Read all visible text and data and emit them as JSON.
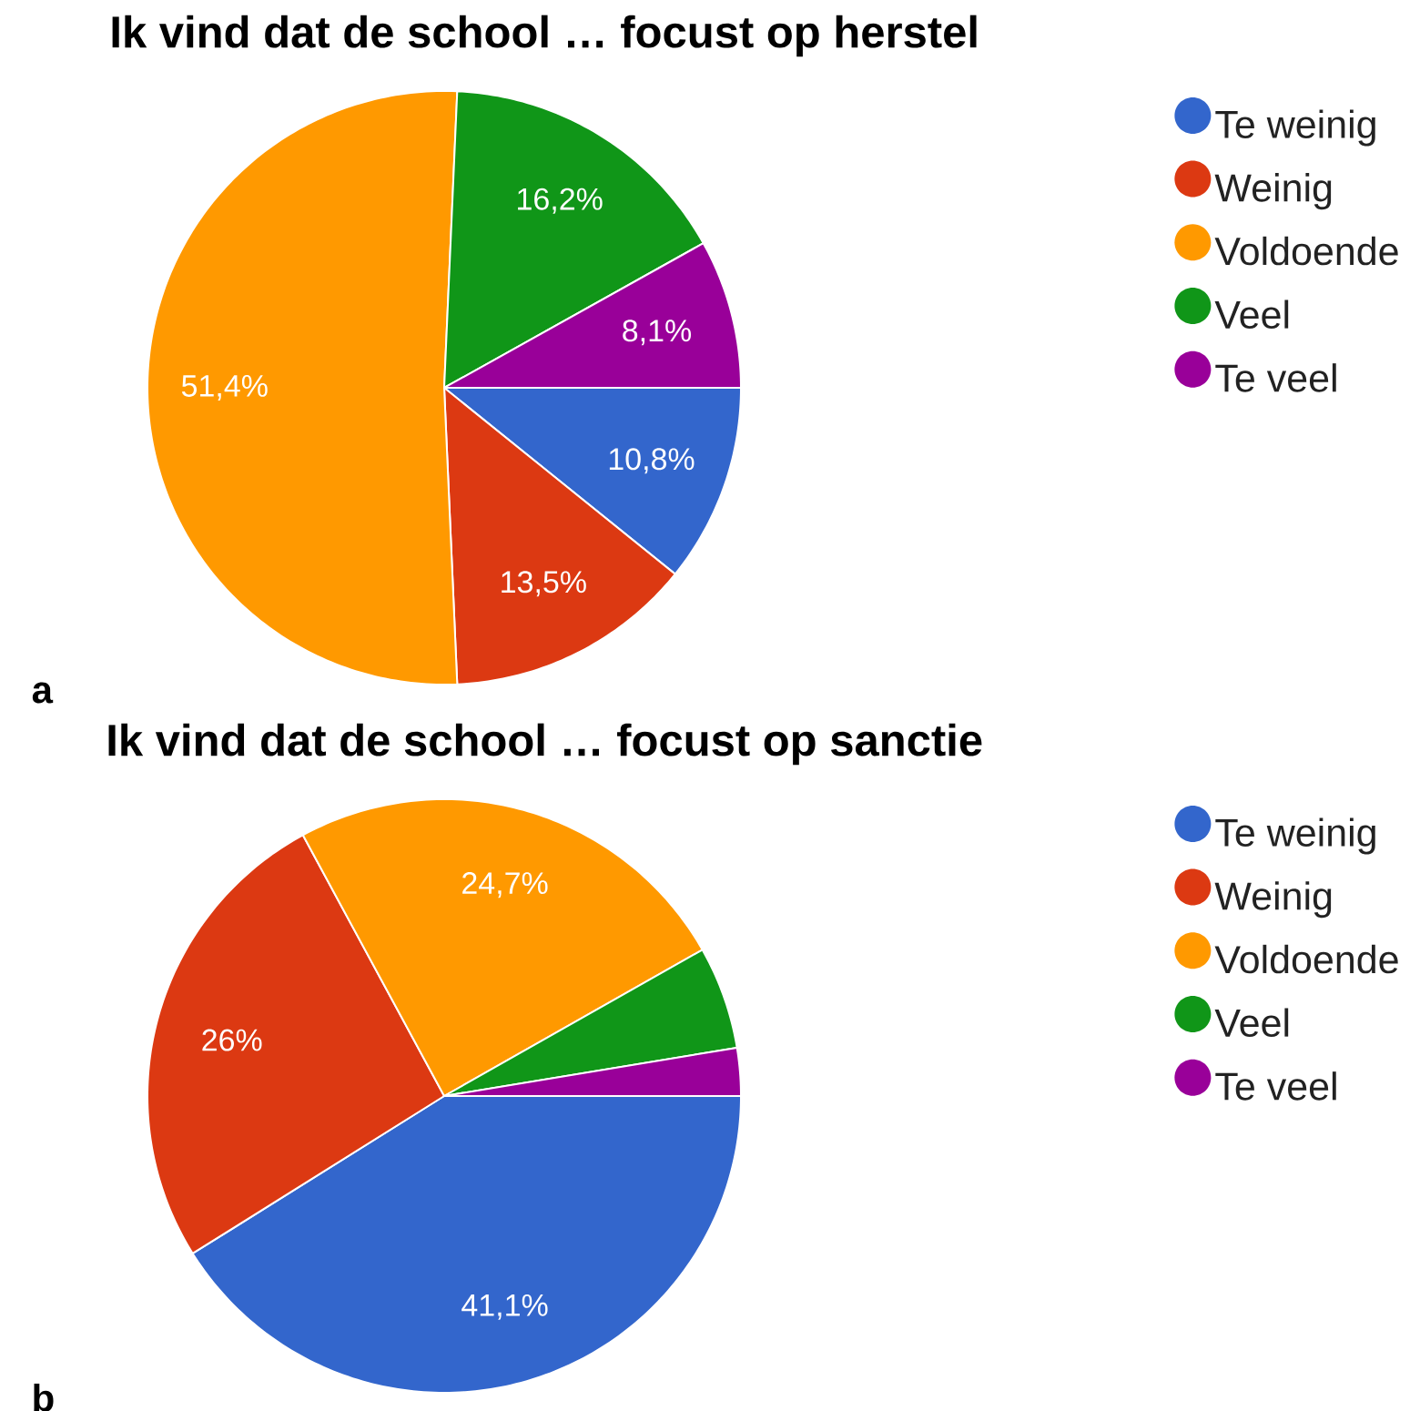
{
  "chart_data": [
    {
      "type": "pie",
      "title": "Ik vind dat de school … focust op herstel",
      "categories": [
        "Te weinig",
        "Weinig",
        "Voldoende",
        "Veel",
        "Te veel"
      ],
      "values": [
        10.8,
        13.5,
        51.4,
        16.2,
        8.1
      ],
      "colors": [
        "#3366cc",
        "#dc3912",
        "#ff9900",
        "#109618",
        "#990099"
      ],
      "value_labels": [
        "10,8%",
        "13,5%",
        "51,4%",
        "16,2%",
        "8,1%"
      ],
      "legend": "right",
      "annotations": [
        "a"
      ]
    },
    {
      "type": "pie",
      "title": "Ik vind dat de school … focust op sanctie",
      "categories": [
        "Te weinig",
        "Weinig",
        "Voldoende",
        "Veel",
        "Te veel"
      ],
      "values": [
        41.1,
        26,
        24.7,
        5.6,
        2.6
      ],
      "colors": [
        "#3366cc",
        "#dc3912",
        "#ff9900",
        "#109618",
        "#990099"
      ],
      "value_labels": [
        "41,1%",
        "26%",
        "24,7%",
        null,
        null
      ],
      "legend": "right",
      "annotations": [
        "b"
      ]
    }
  ]
}
